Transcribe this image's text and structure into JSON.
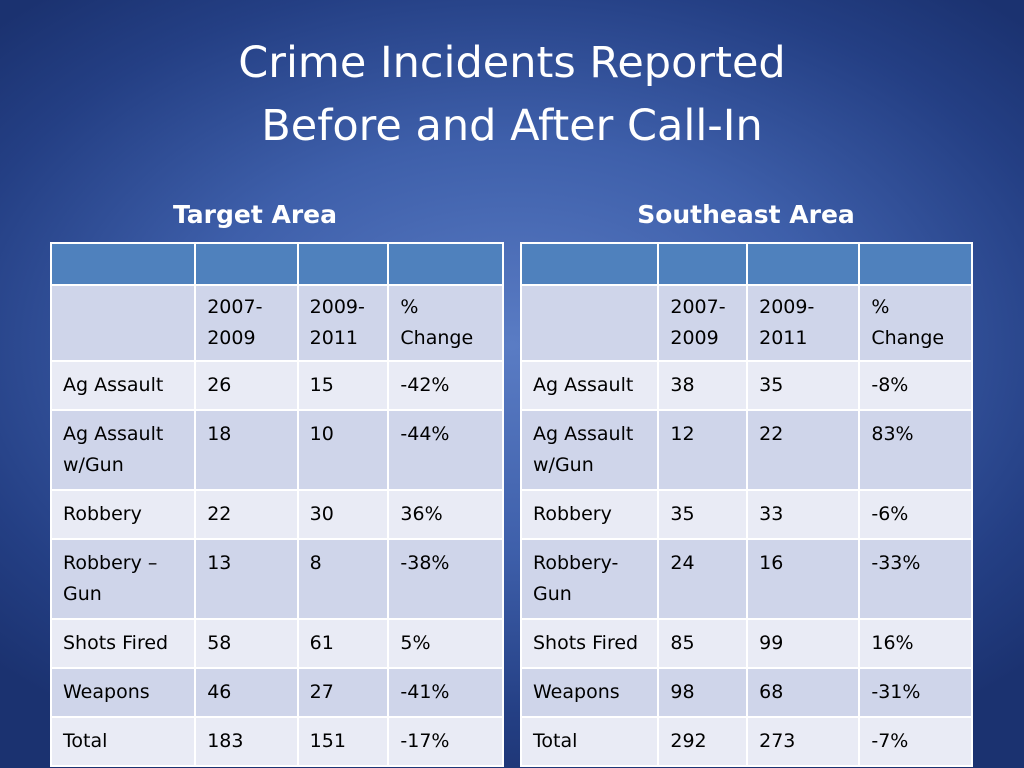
{
  "title": {
    "line1": "Crime Incidents Reported",
    "line2": "Before and After Call-In"
  },
  "tables": [
    {
      "heading": "Target Area",
      "columns": [
        "",
        "2007-2009",
        "2009-2011",
        "% Change"
      ],
      "rows": [
        {
          "name": "Ag Assault",
          "before": "26",
          "after": "15",
          "change": "-42%"
        },
        {
          "name": "Ag Assault w/Gun",
          "before": "18",
          "after": "10",
          "change": "-44%"
        },
        {
          "name": "Robbery",
          "before": "22",
          "after": "30",
          "change": "36%"
        },
        {
          "name": "Robbery – Gun",
          "before": "13",
          "after": "8",
          "change": "-38%"
        },
        {
          "name": "Shots Fired",
          "before": "58",
          "after": "61",
          "change": "5%"
        },
        {
          "name": "Weapons",
          "before": "46",
          "after": "27",
          "change": "-41%"
        },
        {
          "name": "Total",
          "before": "183",
          "after": "151",
          "change": "-17%"
        }
      ]
    },
    {
      "heading": "Southeast Area",
      "columns": [
        "",
        "2007-2009",
        "2009-2011",
        "% Change"
      ],
      "rows": [
        {
          "name": "Ag Assault",
          "before": "38",
          "after": "35",
          "change": "-8%"
        },
        {
          "name": "Ag Assault w/Gun",
          "before": "12",
          "after": "22",
          "change": "83%"
        },
        {
          "name": "Robbery",
          "before": "35",
          "after": "33",
          "change": "-6%"
        },
        {
          "name": "Robbery-Gun",
          "before": "24",
          "after": "16",
          "change": "-33%"
        },
        {
          "name": "Shots Fired",
          "before": "85",
          "after": "99",
          "change": "16%"
        },
        {
          "name": "Weapons",
          "before": "98",
          "after": "68",
          "change": "-31%"
        },
        {
          "name": "Total",
          "before": "292",
          "after": "273",
          "change": "-7%"
        }
      ]
    }
  ],
  "colors": {
    "header_fill": "#4f81bd",
    "row_dark": "#cfd5ea",
    "row_light": "#e9ebf5"
  }
}
